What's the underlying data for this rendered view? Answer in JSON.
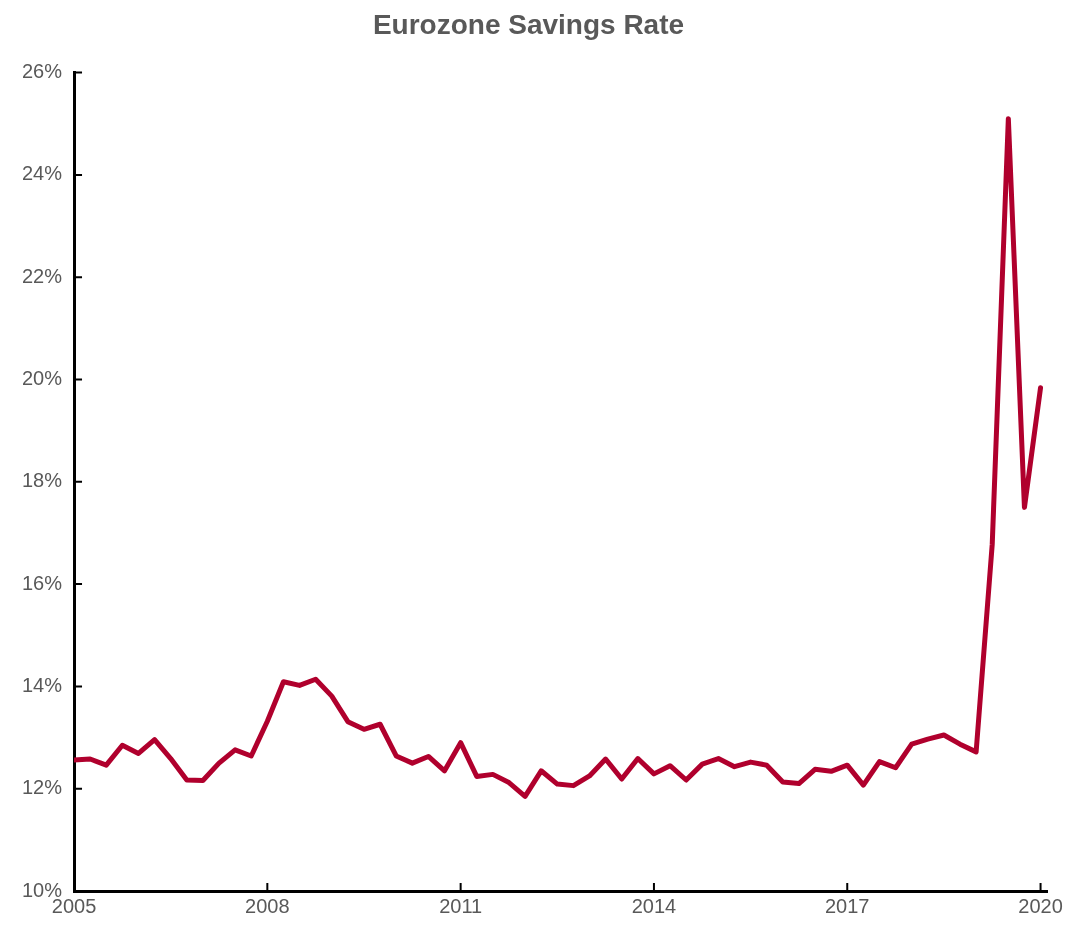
{
  "chart_data": {
    "type": "line",
    "title": "Eurozone Savings Rate",
    "x": [
      2005,
      2005.25,
      2005.5,
      2005.75,
      2006,
      2006.25,
      2006.5,
      2006.75,
      2007,
      2007.25,
      2007.5,
      2007.75,
      2008,
      2008.25,
      2008.5,
      2008.75,
      2009,
      2009.25,
      2009.5,
      2009.75,
      2010,
      2010.25,
      2010.5,
      2010.75,
      2011,
      2011.25,
      2011.5,
      2011.75,
      2012,
      2012.25,
      2012.5,
      2012.75,
      2013,
      2013.25,
      2013.5,
      2013.75,
      2014,
      2014.25,
      2014.5,
      2014.75,
      2015,
      2015.25,
      2015.5,
      2015.75,
      2016,
      2016.25,
      2016.5,
      2016.75,
      2017,
      2017.25,
      2017.5,
      2017.75,
      2018,
      2018.25,
      2018.5,
      2018.75,
      2019,
      2019.25,
      2019.5,
      2019.75,
      2020
    ],
    "series": [
      {
        "color": "#b0002d",
        "values": [
          12.56,
          12.58,
          12.46,
          12.85,
          12.69,
          12.96,
          12.59,
          12.17,
          12.16,
          12.5,
          12.76,
          12.64,
          13.32,
          14.09,
          14.02,
          14.14,
          13.81,
          13.31,
          13.16,
          13.26,
          12.64,
          12.5,
          12.63,
          12.35,
          12.9,
          12.24,
          12.28,
          12.12,
          11.85,
          12.35,
          12.09,
          12.06,
          12.25,
          12.58,
          12.19,
          12.59,
          12.29,
          12.45,
          12.17,
          12.48,
          12.59,
          12.43,
          12.52,
          12.46,
          12.13,
          12.1,
          12.38,
          12.34,
          12.46,
          12.07,
          12.53,
          12.41,
          12.87,
          12.97,
          13.05,
          12.87,
          12.72,
          16.78,
          25.1,
          17.5,
          19.84
        ]
      }
    ],
    "xlim": [
      2005,
      2020.1
    ],
    "xticks": [
      2005,
      2008,
      2011,
      2014,
      2017,
      2020
    ],
    "ylim": [
      10,
      26
    ],
    "yticks": [
      {
        "value": 10,
        "label": "10%"
      },
      {
        "value": 12,
        "label": "12%"
      },
      {
        "value": 14,
        "label": "14%"
      },
      {
        "value": 16,
        "label": "16%"
      },
      {
        "value": 18,
        "label": "18%"
      },
      {
        "value": 20,
        "label": "20%"
      },
      {
        "value": 22,
        "label": "22%"
      },
      {
        "value": 24,
        "label": "24%"
      },
      {
        "value": 26,
        "label": "26%"
      }
    ],
    "grid": false,
    "legend": false,
    "marker": "none",
    "line_style": "solid"
  }
}
